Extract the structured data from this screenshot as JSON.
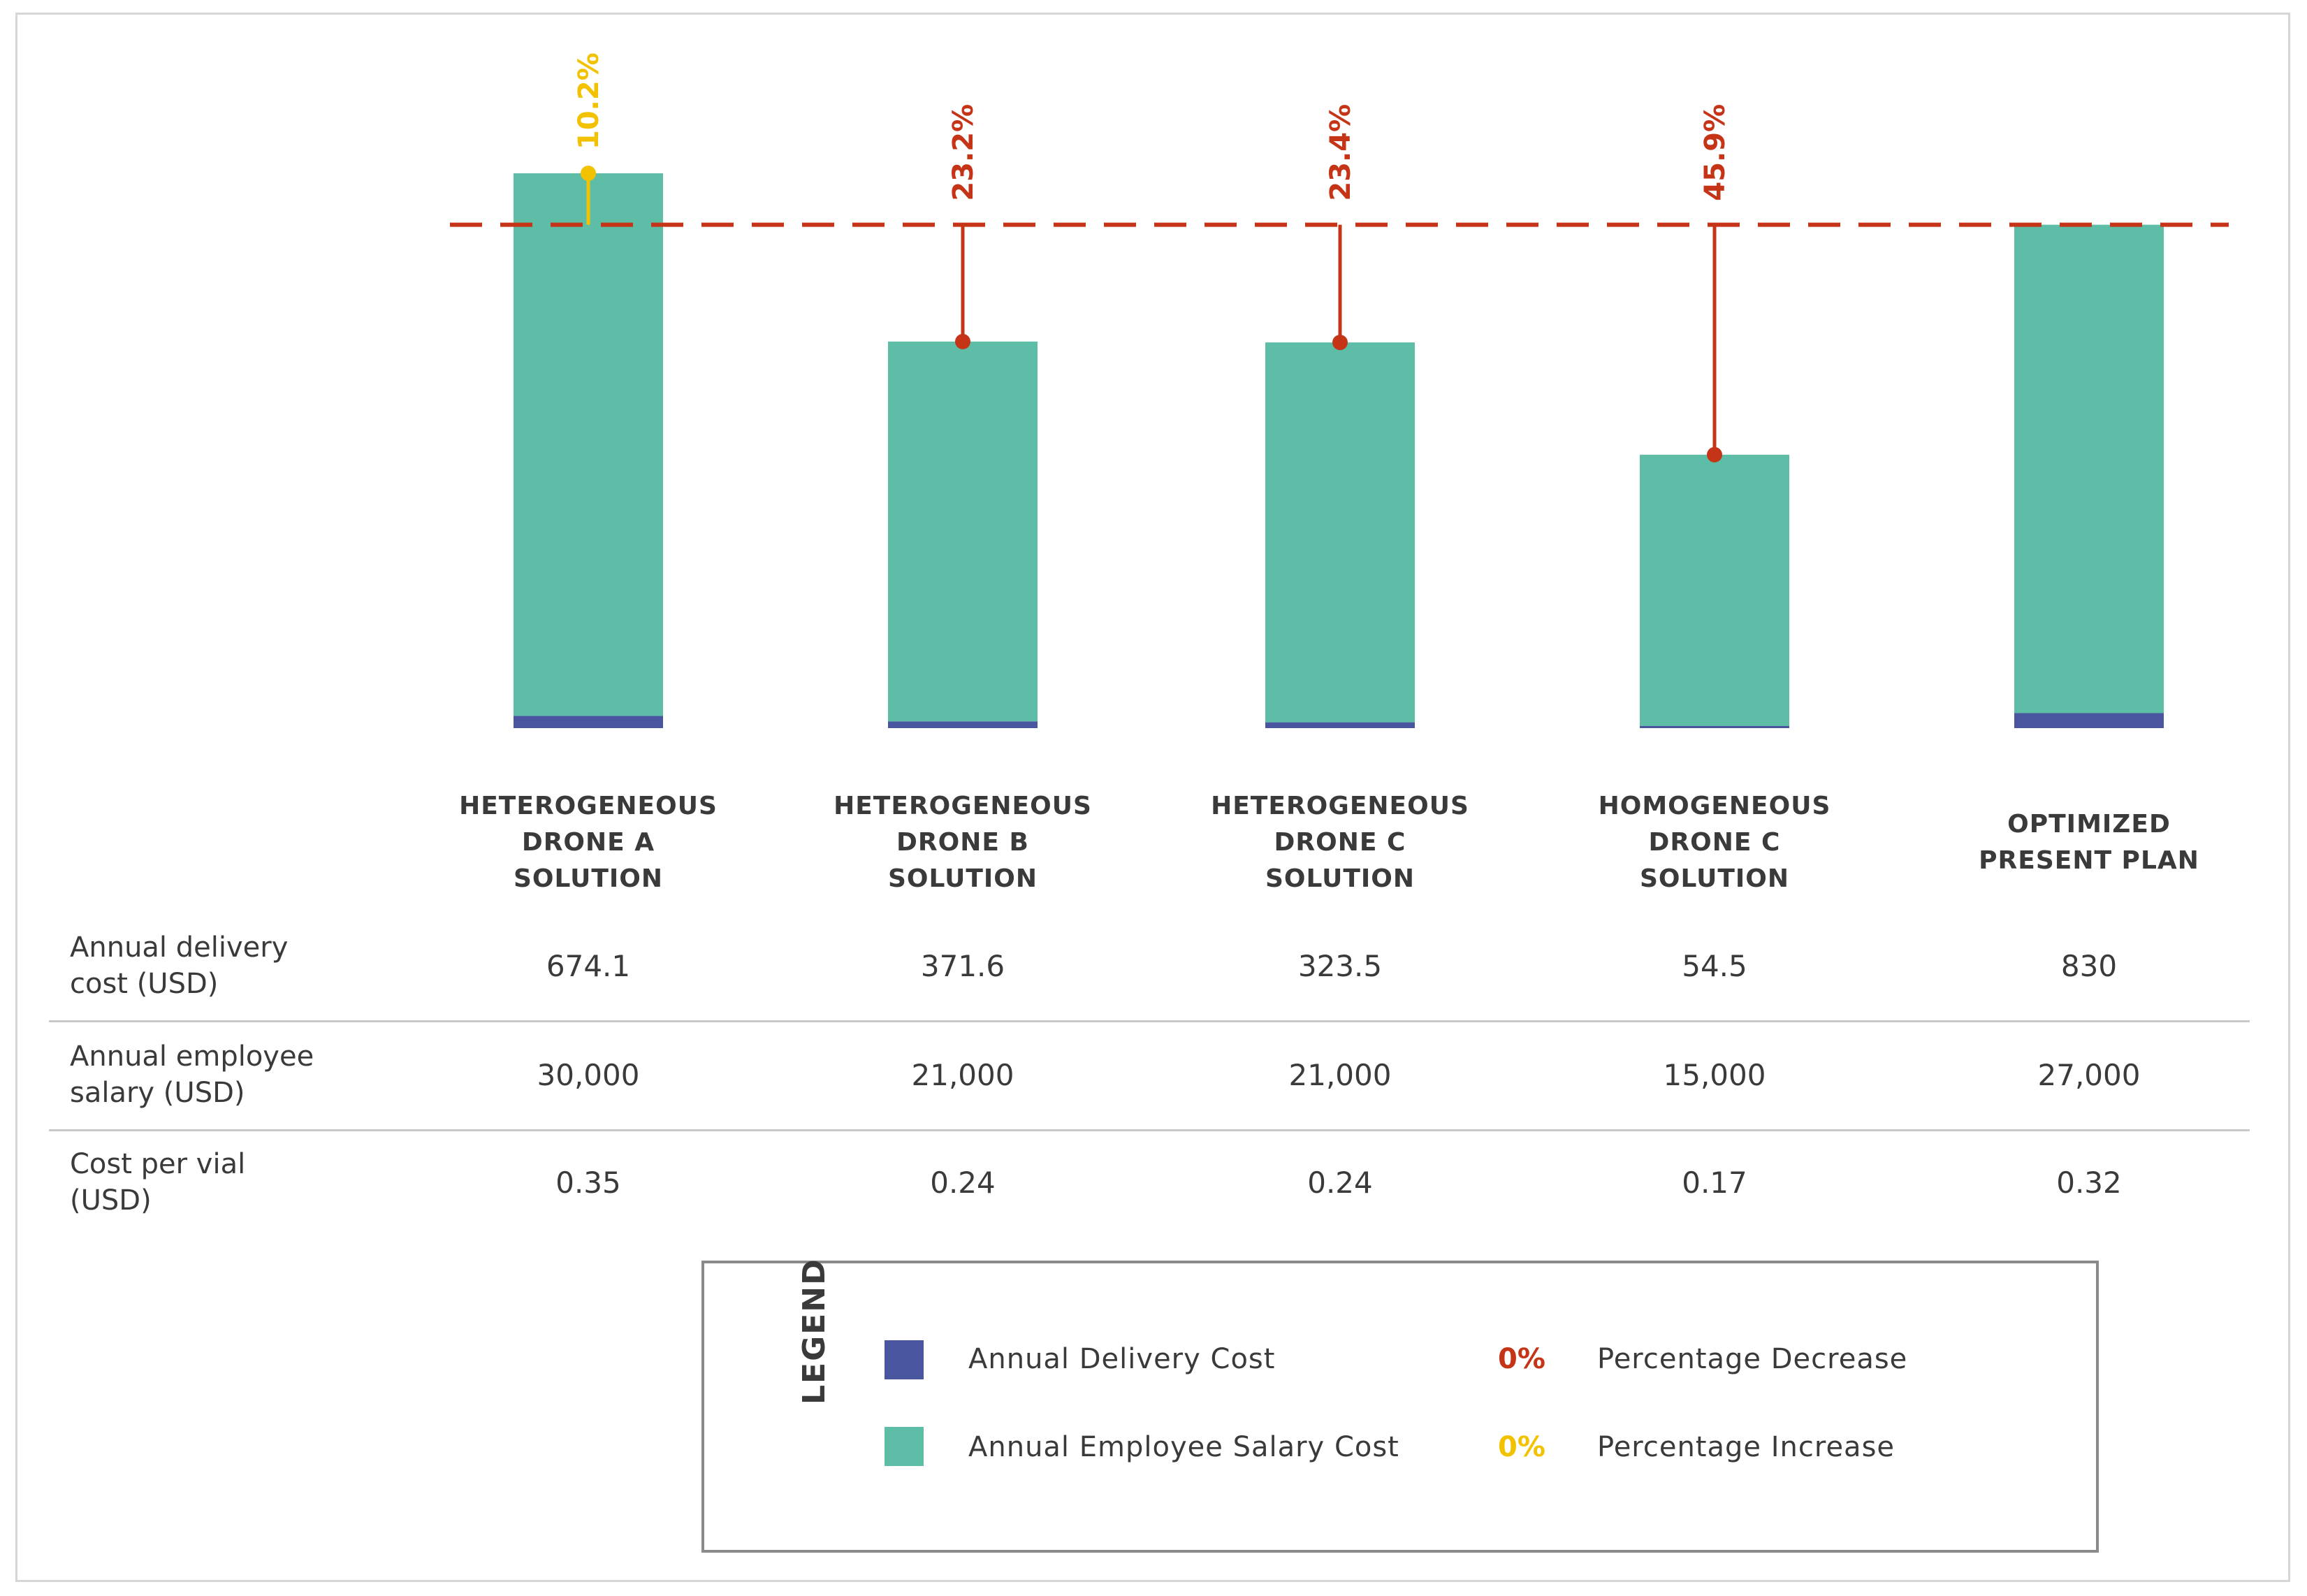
{
  "colors": {
    "salary": "#5ebda6",
    "delivery": "#4a55a0",
    "decrease": "#c53417",
    "increase": "#f2c200",
    "reference_line": "#c53417"
  },
  "chart_data": {
    "type": "bar",
    "stacked": true,
    "categories": [
      "HETEROGENEOUS\nDRONE A\nSOLUTION",
      "HETEROGENEOUS\nDRONE B\nSOLUTION",
      "HETEROGENEOUS\nDRONE C\nSOLUTION",
      "HOMOGENEOUS\nDRONE C\nSOLUTION",
      "OPTIMIZED\nPRESENT PLAN"
    ],
    "series": [
      {
        "name": "Annual Delivery Cost",
        "values": [
          674.1,
          371.6,
          323.5,
          54.5,
          830
        ]
      },
      {
        "name": "Annual Employee Salary Cost",
        "values": [
          30000,
          21000,
          21000,
          15000,
          27000
        ]
      }
    ],
    "reference": {
      "category_index": 4,
      "value": 27830
    },
    "changes": [
      {
        "label": "10.2%",
        "direction": "increase"
      },
      {
        "label": "23.2%",
        "direction": "decrease"
      },
      {
        "label": "23.4%",
        "direction": "decrease"
      },
      {
        "label": "45.9%",
        "direction": "decrease"
      },
      null
    ],
    "ylim": [
      0,
      30674.1
    ]
  },
  "table": {
    "rows": [
      {
        "label": "Annual delivery\ncost (USD)",
        "values": [
          "674.1",
          "371.6",
          "323.5",
          "54.5",
          "830"
        ]
      },
      {
        "label": "Annual employee\nsalary (USD)",
        "values": [
          "30,000",
          "21,000",
          "21,000",
          "15,000",
          "27,000"
        ]
      },
      {
        "label": "Cost per vial\n(USD)",
        "values": [
          "0.35",
          "0.24",
          "0.24",
          "0.17",
          "0.32"
        ]
      }
    ]
  },
  "legend": {
    "title": "LEGEND",
    "delivery_label": "Annual Delivery Cost",
    "salary_label": "Annual Employee Salary Cost",
    "decrease_sample": "0%",
    "decrease_label": "Percentage Decrease",
    "increase_sample": "0%",
    "increase_label": "Percentage Increase"
  }
}
